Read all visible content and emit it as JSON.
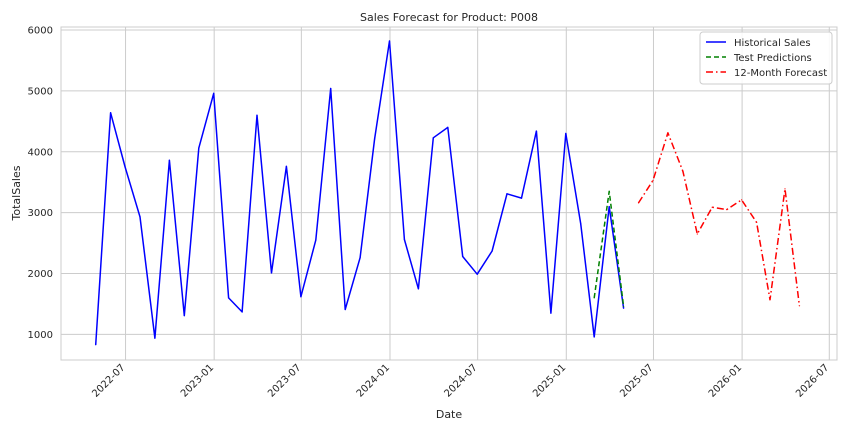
{
  "chart_data": {
    "type": "line",
    "title": "Sales Forecast for Product: P008",
    "xlabel": "Date",
    "ylabel": "TotalSales",
    "xlim": [
      "2022-02-17",
      "2026-07-17"
    ],
    "ylim": [
      580,
      6050
    ],
    "grid": true,
    "legend_position": "top-right",
    "x_ticks": [
      "2022-07",
      "2023-01",
      "2023-07",
      "2024-01",
      "2024-07",
      "2025-01",
      "2025-07",
      "2026-01",
      "2026-07"
    ],
    "y_ticks": [
      1000,
      2000,
      3000,
      4000,
      5000,
      6000
    ],
    "series": [
      {
        "name": "Historical Sales",
        "color": "#0000ff",
        "style": "solid",
        "x": [
          "2022-04-30",
          "2022-05-31",
          "2022-06-30",
          "2022-07-31",
          "2022-08-31",
          "2022-09-30",
          "2022-10-31",
          "2022-11-30",
          "2022-12-31",
          "2023-01-31",
          "2023-02-28",
          "2023-03-31",
          "2023-04-30",
          "2023-05-31",
          "2023-06-30",
          "2023-07-31",
          "2023-08-31",
          "2023-09-30",
          "2023-10-31",
          "2023-11-30",
          "2023-12-31",
          "2024-01-31",
          "2024-02-29",
          "2024-03-31",
          "2024-04-30",
          "2024-05-31",
          "2024-06-30",
          "2024-07-31",
          "2024-08-31",
          "2024-09-30",
          "2024-10-31",
          "2024-11-30",
          "2024-12-31",
          "2025-01-31",
          "2025-02-28",
          "2025-03-31",
          "2025-04-30"
        ],
        "y": [
          830,
          4640,
          3750,
          2930,
          940,
          3860,
          1310,
          4060,
          4960,
          1600,
          1370,
          4600,
          2010,
          3760,
          1620,
          2550,
          5040,
          1410,
          2260,
          4210,
          5820,
          2560,
          1750,
          4230,
          4400,
          2280,
          1990,
          2370,
          3310,
          3240,
          4340,
          1350,
          4300,
          2820,
          960,
          3100,
          1430
        ]
      },
      {
        "name": "Test Predictions",
        "color": "#008000",
        "style": "dashed",
        "x": [
          "2025-02-28",
          "2025-03-31",
          "2025-04-30"
        ],
        "y": [
          1600,
          3350,
          1460
        ]
      },
      {
        "name": "12-Month Forecast",
        "color": "#ff0000",
        "style": "dashdot",
        "x": [
          "2025-05-31",
          "2025-06-30",
          "2025-07-31",
          "2025-08-31",
          "2025-09-30",
          "2025-10-31",
          "2025-11-30",
          "2025-12-31",
          "2026-01-31",
          "2026-02-28",
          "2026-03-31",
          "2026-04-30"
        ],
        "y": [
          3160,
          3530,
          4310,
          3680,
          2650,
          3090,
          3050,
          3210,
          2840,
          1570,
          3390,
          1470
        ]
      }
    ]
  }
}
